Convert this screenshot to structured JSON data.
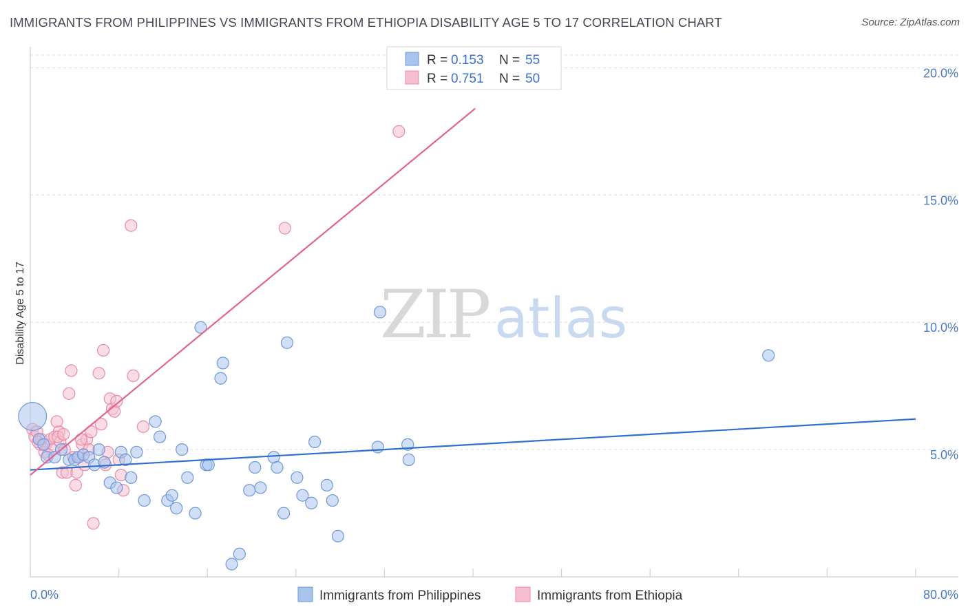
{
  "header": {
    "title": "IMMIGRANTS FROM PHILIPPINES VS IMMIGRANTS FROM ETHIOPIA DISABILITY AGE 5 TO 17 CORRELATION CHART",
    "source": "Source: ZipAtlas.com"
  },
  "watermark": {
    "zip": "ZIP",
    "atlas": "atlas"
  },
  "colors": {
    "blue_fill": "#a9c4ec",
    "blue_stroke": "#6d97d8",
    "blue_line": "#2f6fd0",
    "pink_fill": "#f6bfd0",
    "pink_stroke": "#e98aa9",
    "pink_line": "#e0648e",
    "grid": "#dedede",
    "tick_label": "#4a78c8"
  },
  "legend": {
    "rows": [
      {
        "r_label": "R = ",
        "r_value": "0.153",
        "n_label": "N = ",
        "n_value": "55"
      },
      {
        "r_label": "R = ",
        "r_value": "0.751",
        "n_label": "N = ",
        "n_value": "50"
      }
    ]
  },
  "bottom_legend": {
    "series_a": "Immigrants from Philippines",
    "series_b": "Immigrants from Ethiopia"
  },
  "chart_data": {
    "type": "scatter",
    "title": "IMMIGRANTS FROM PHILIPPINES VS IMMIGRANTS FROM ETHIOPIA DISABILITY AGE 5 TO 17 CORRELATION CHART",
    "xlabel": "",
    "ylabel": "Disability Age 5 to 17",
    "xlim": [
      0,
      80
    ],
    "ylim": [
      0,
      20.5
    ],
    "x_tick_labels": [
      "0.0%",
      "80.0%"
    ],
    "y_ticks": [
      5,
      10,
      15,
      20
    ],
    "y_tick_labels": [
      "5.0%",
      "10.0%",
      "15.0%",
      "20.0%"
    ],
    "x_minor_ticks": [
      0,
      8,
      16,
      24,
      32,
      40,
      48,
      56,
      64,
      72,
      80
    ],
    "grid": true,
    "legend_position": "top-center",
    "series": [
      {
        "name": "Immigrants from Philippines",
        "R": 0.153,
        "N": 55,
        "trend": {
          "x": [
            0,
            80
          ],
          "y": [
            4.2,
            6.2
          ]
        },
        "points": [
          [
            0.2,
            6.3,
            24
          ],
          [
            0.8,
            5.4,
            10
          ],
          [
            1.2,
            5.2,
            10
          ],
          [
            1.5,
            4.7,
            10
          ],
          [
            2.2,
            4.7,
            10
          ],
          [
            2.8,
            5.0,
            10
          ],
          [
            3.5,
            4.6,
            10
          ],
          [
            4.0,
            4.6,
            10
          ],
          [
            4.3,
            4.7,
            10
          ],
          [
            4.8,
            4.8,
            10
          ],
          [
            5.3,
            4.7,
            10
          ],
          [
            5.8,
            4.4,
            10
          ],
          [
            6.2,
            5.0,
            10
          ],
          [
            6.7,
            4.5,
            10
          ],
          [
            7.2,
            3.7,
            10
          ],
          [
            7.8,
            3.5,
            10
          ],
          [
            8.2,
            4.9,
            10
          ],
          [
            8.6,
            4.6,
            10
          ],
          [
            9.1,
            3.9,
            10
          ],
          [
            9.6,
            4.9,
            10
          ],
          [
            10.3,
            3.0,
            10
          ],
          [
            11.3,
            6.1,
            10
          ],
          [
            11.7,
            5.5,
            10
          ],
          [
            12.4,
            3.0,
            10
          ],
          [
            12.8,
            3.2,
            10
          ],
          [
            13.2,
            2.7,
            10
          ],
          [
            13.7,
            5.0,
            10
          ],
          [
            14.2,
            3.9,
            10
          ],
          [
            14.9,
            2.5,
            10
          ],
          [
            15.4,
            9.8,
            10
          ],
          [
            15.9,
            4.4,
            10
          ],
          [
            16.1,
            4.4,
            10
          ],
          [
            17.2,
            7.8,
            10
          ],
          [
            17.4,
            8.4,
            10
          ],
          [
            18.2,
            0.5,
            10
          ],
          [
            18.9,
            0.9,
            10
          ],
          [
            19.8,
            3.4,
            10
          ],
          [
            20.3,
            4.3,
            10
          ],
          [
            20.8,
            3.5,
            10
          ],
          [
            22.0,
            4.7,
            10
          ],
          [
            22.3,
            4.3,
            10
          ],
          [
            22.9,
            2.5,
            10
          ],
          [
            23.2,
            9.2,
            10
          ],
          [
            24.1,
            3.9,
            10
          ],
          [
            24.6,
            3.2,
            10
          ],
          [
            25.4,
            2.9,
            10
          ],
          [
            25.7,
            5.3,
            10
          ],
          [
            26.8,
            3.6,
            10
          ],
          [
            27.3,
            3.0,
            10
          ],
          [
            27.8,
            1.6,
            10
          ],
          [
            31.4,
            5.1,
            10
          ],
          [
            31.6,
            10.4,
            10
          ],
          [
            34.1,
            5.2,
            10
          ],
          [
            34.2,
            4.6,
            10
          ],
          [
            66.7,
            8.7,
            10
          ]
        ]
      },
      {
        "name": "Immigrants from Ethiopia",
        "R": 0.751,
        "N": 50,
        "trend": {
          "x": [
            0,
            40.2
          ],
          "y": [
            4.0,
            18.4
          ]
        },
        "points": [
          [
            0.2,
            5.8,
            10
          ],
          [
            0.4,
            5.5,
            10
          ],
          [
            0.6,
            5.7,
            10
          ],
          [
            0.9,
            5.2,
            10
          ],
          [
            1.0,
            5.4,
            10
          ],
          [
            1.3,
            4.9,
            10
          ],
          [
            1.4,
            5.2,
            10
          ],
          [
            1.8,
            5.4,
            10
          ],
          [
            2.0,
            5.0,
            10
          ],
          [
            2.2,
            5.5,
            10
          ],
          [
            2.4,
            6.1,
            10
          ],
          [
            2.6,
            5.7,
            10
          ],
          [
            2.7,
            5.3,
            10
          ],
          [
            2.9,
            4.1,
            10
          ],
          [
            3.1,
            5.0,
            10
          ],
          [
            3.3,
            4.1,
            10
          ],
          [
            3.5,
            7.2,
            10
          ],
          [
            3.7,
            8.1,
            10
          ],
          [
            3.9,
            4.7,
            10
          ],
          [
            4.1,
            3.6,
            10
          ],
          [
            4.2,
            4.1,
            10
          ],
          [
            4.4,
            4.7,
            10
          ],
          [
            4.7,
            5.2,
            10
          ],
          [
            4.9,
            4.4,
            10
          ],
          [
            5.1,
            5.4,
            10
          ],
          [
            5.3,
            5.0,
            10
          ],
          [
            5.5,
            5.7,
            10
          ],
          [
            5.7,
            2.1,
            10
          ],
          [
            6.2,
            8.0,
            10
          ],
          [
            6.4,
            6.0,
            10
          ],
          [
            6.6,
            8.9,
            10
          ],
          [
            6.8,
            4.4,
            10
          ],
          [
            7.0,
            4.9,
            10
          ],
          [
            7.2,
            7.0,
            10
          ],
          [
            7.4,
            6.6,
            10
          ],
          [
            7.6,
            6.5,
            10
          ],
          [
            7.8,
            6.9,
            10
          ],
          [
            8.0,
            4.6,
            10
          ],
          [
            8.2,
            4.0,
            10
          ],
          [
            8.4,
            3.4,
            10
          ],
          [
            9.1,
            13.8,
            10
          ],
          [
            9.3,
            7.9,
            10
          ],
          [
            10.2,
            5.9,
            10
          ],
          [
            23.0,
            13.7,
            10
          ],
          [
            33.3,
            17.5,
            10
          ],
          [
            0.7,
            5.3,
            10
          ],
          [
            1.6,
            4.8,
            10
          ],
          [
            2.5,
            5.5,
            10
          ],
          [
            3.0,
            5.6,
            10
          ],
          [
            4.6,
            5.4,
            10
          ]
        ]
      }
    ]
  }
}
